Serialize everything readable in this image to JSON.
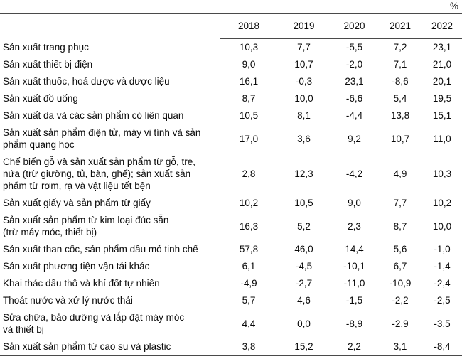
{
  "unit_label": "%",
  "chart_data": {
    "type": "table",
    "title": "",
    "unit": "%",
    "decimal_separator": ",",
    "columns": [
      "2018",
      "2019",
      "2020",
      "2021",
      "2022"
    ],
    "rows": [
      {
        "label": "Sản xuất trang phục",
        "values": [
          "10,3",
          "7,7",
          "-5,5",
          "7,2",
          "23,1"
        ]
      },
      {
        "label": "Sản xuất thiết bị điện",
        "values": [
          "9,0",
          "10,7",
          "-2,0",
          "7,1",
          "21,0"
        ]
      },
      {
        "label": "Sản xuất thuốc, hoá dược và dược liệu",
        "values": [
          "16,1",
          "-0,3",
          "23,1",
          "-8,6",
          "20,1"
        ]
      },
      {
        "label": "Sản xuất đồ uống",
        "values": [
          "8,7",
          "10,0",
          "-6,6",
          "5,4",
          "19,5"
        ]
      },
      {
        "label": "Sản xuất da và các sản phẩm có liên quan",
        "values": [
          "10,5",
          "8,1",
          "-4,4",
          "13,8",
          "15,1"
        ]
      },
      {
        "label": "Sản xuất sản phẩm điện tử, máy vi tính và sản\nphẩm quang học",
        "values": [
          "17,0",
          "3,6",
          "9,2",
          "10,7",
          "11,0"
        ]
      },
      {
        "label": "Chế biến gỗ và sản xuất sản phẩm từ gỗ, tre,\nnứa (trừ giường, tủ, bàn, ghế); sản xuất sản\nphẩm từ rơm, rạ và vật liệu tết bện",
        "values": [
          "2,8",
          "12,3",
          "-4,2",
          "4,9",
          "10,3"
        ]
      },
      {
        "label": "Sản xuất giấy và sản phẩm từ giấy",
        "values": [
          "10,2",
          "10,5",
          "9,0",
          "7,7",
          "10,2"
        ]
      },
      {
        "label": "Sản xuất sản phẩm từ kim loại đúc sẵn\n(trừ máy móc, thiết bị)",
        "values": [
          "16,3",
          "5,2",
          "2,3",
          "8,7",
          "10,0"
        ]
      },
      {
        "label": "Sản xuất than cốc, sản phẩm dầu mỏ tinh chế",
        "values": [
          "57,8",
          "46,0",
          "14,4",
          "5,6",
          "-1,0"
        ]
      },
      {
        "label": "Sản xuất phương tiện vận tải khác",
        "values": [
          "6,1",
          "-4,5",
          "-10,1",
          "6,7",
          "-1,4"
        ]
      },
      {
        "label": "Khai thác dầu thô và khí đốt tự nhiên",
        "values": [
          "-4,9",
          "-2,7",
          "-11,0",
          "-10,9",
          "-2,4"
        ]
      },
      {
        "label": "Thoát nước và xử lý nước thải",
        "values": [
          "5,7",
          "4,6",
          "-1,5",
          "-2,2",
          "-2,5"
        ]
      },
      {
        "label": "Sửa chữa, bảo dưỡng và lắp đặt máy móc\nvà thiết bị",
        "values": [
          "4,4",
          "0,0",
          "-8,9",
          "-2,9",
          "-3,5"
        ]
      },
      {
        "label": "Sản xuất sản phẩm từ cao su và plastic",
        "values": [
          "3,8",
          "15,2",
          "2,2",
          "3,1",
          "-8,4"
        ]
      }
    ]
  }
}
